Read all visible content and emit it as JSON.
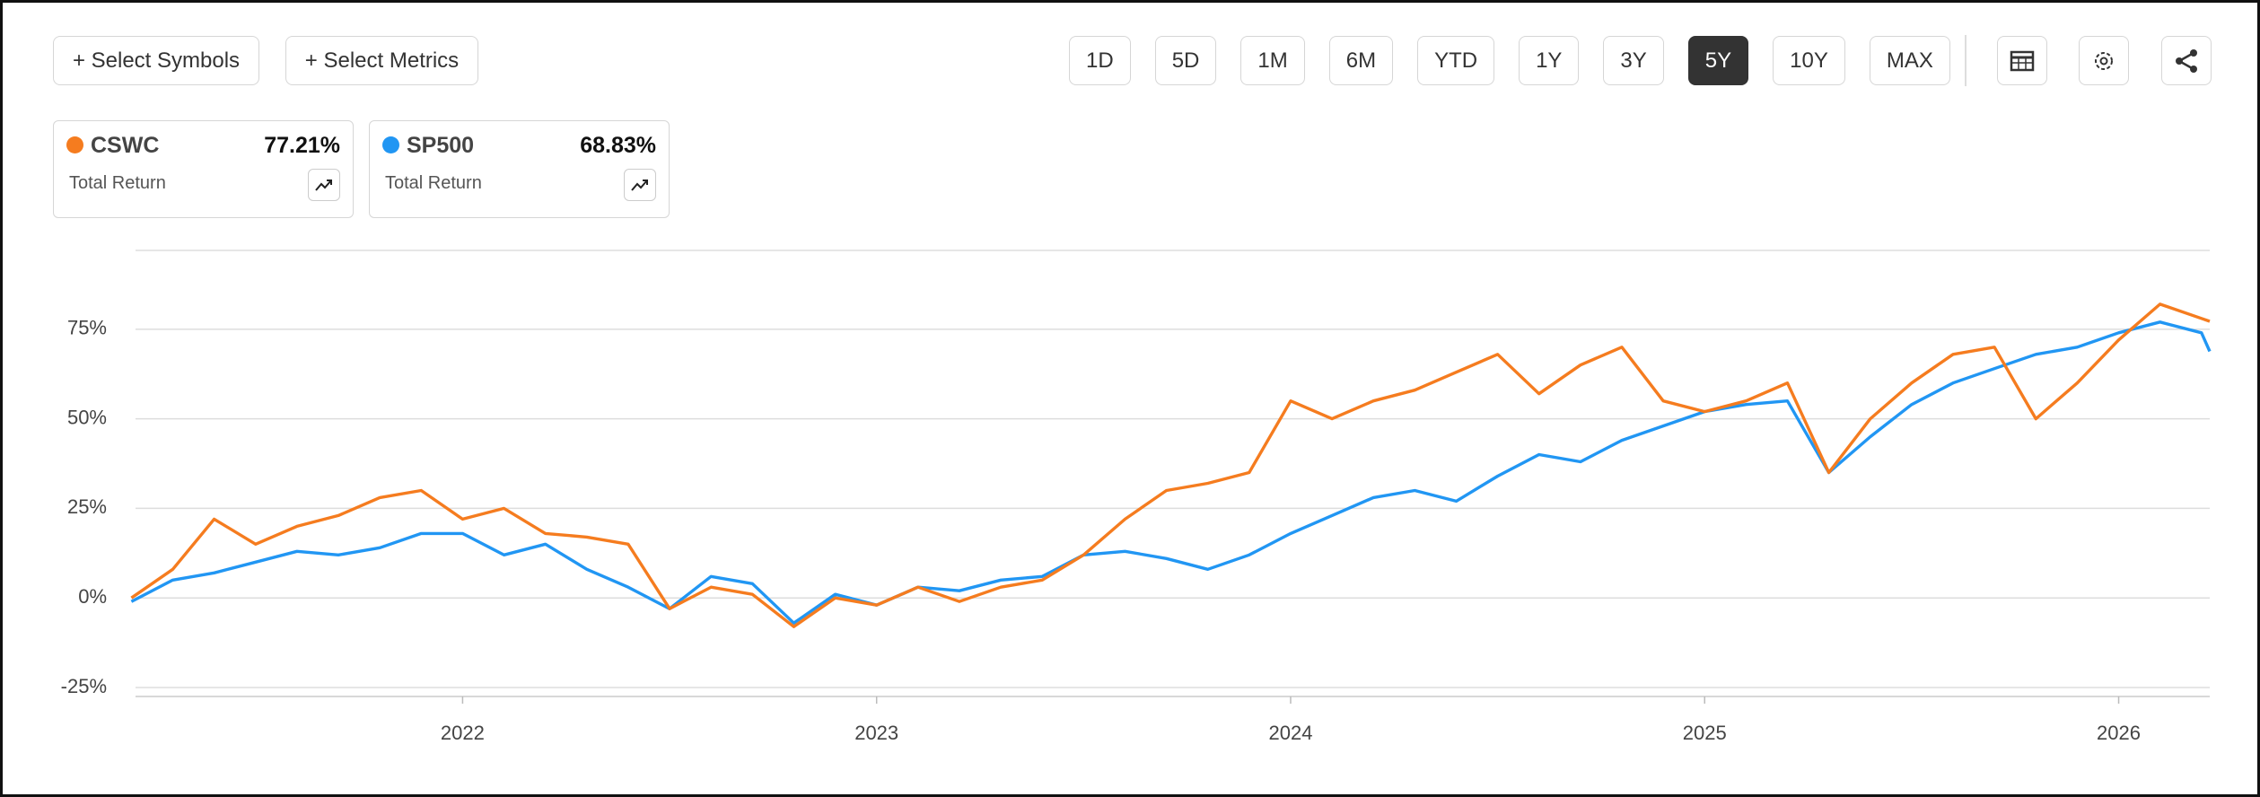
{
  "toolbar": {
    "buttons": [
      "+ Select Symbols",
      "+ Select Metrics"
    ],
    "ranges": [
      "1D",
      "5D",
      "1M",
      "6M",
      "YTD",
      "1Y",
      "3Y",
      "5Y",
      "10Y",
      "MAX"
    ],
    "active_range": "5Y"
  },
  "chart_data": {
    "type": "line",
    "x": [
      2021.2,
      2021.3,
      2021.4,
      2021.5,
      2021.6,
      2021.7,
      2021.8,
      2021.9,
      2022.0,
      2022.1,
      2022.2,
      2022.3,
      2022.4,
      2022.5,
      2022.6,
      2022.7,
      2022.8,
      2022.9,
      2023.0,
      2023.1,
      2023.2,
      2023.3,
      2023.4,
      2023.5,
      2023.6,
      2023.7,
      2023.8,
      2023.9,
      2024.0,
      2024.1,
      2024.2,
      2024.3,
      2024.4,
      2024.5,
      2024.6,
      2024.7,
      2024.8,
      2024.9,
      2025.0,
      2025.1,
      2025.2,
      2025.3,
      2025.4,
      2025.5,
      2025.6,
      2025.7,
      2025.8,
      2025.9,
      2026.0,
      2026.1,
      2026.2,
      2026.22
    ],
    "series": [
      {
        "name": "CSWC",
        "color": "#f57c1f",
        "total_return": "77.21%",
        "metric": "Total Return",
        "values": [
          0,
          8,
          22,
          15,
          20,
          23,
          28,
          30,
          22,
          25,
          18,
          17,
          15,
          -3,
          3,
          1,
          -8,
          0,
          -2,
          3,
          -1,
          3,
          5,
          12,
          22,
          30,
          32,
          35,
          55,
          50,
          55,
          58,
          63,
          68,
          57,
          65,
          70,
          55,
          52,
          55,
          60,
          35,
          50,
          60,
          68,
          70,
          50,
          60,
          72,
          82,
          78,
          77.21
        ]
      },
      {
        "name": "SP500",
        "color": "#2196f3",
        "total_return": "68.83%",
        "metric": "Total Return",
        "values": [
          -1,
          5,
          7,
          10,
          13,
          12,
          14,
          18,
          18,
          12,
          15,
          8,
          3,
          -3,
          6,
          4,
          -7,
          1,
          -2,
          3,
          2,
          5,
          6,
          12,
          13,
          11,
          8,
          12,
          18,
          23,
          28,
          30,
          27,
          34,
          40,
          38,
          44,
          48,
          52,
          54,
          55,
          35,
          45,
          54,
          60,
          64,
          68,
          70,
          74,
          77,
          74,
          68.83
        ]
      }
    ],
    "xlim": [
      2021.21,
      2026.22
    ],
    "xticks": [
      2022,
      2023,
      2024,
      2025,
      2026
    ],
    "ylim": [
      -27.5,
      97
    ],
    "yticks": [
      {
        "value": -25,
        "label": "-25%"
      },
      {
        "value": 0,
        "label": "0%"
      },
      {
        "value": 25,
        "label": "25%"
      },
      {
        "value": 50,
        "label": "50%"
      },
      {
        "value": 75,
        "label": "75%"
      }
    ],
    "grid": true
  }
}
